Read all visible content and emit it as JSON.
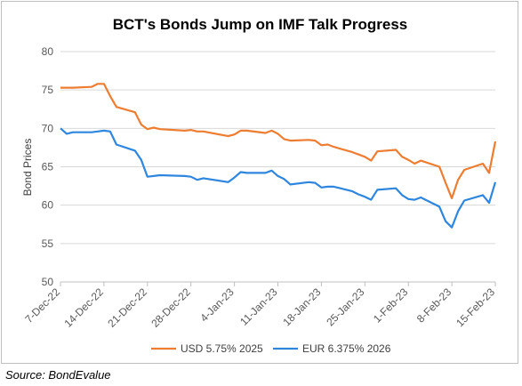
{
  "chart_data": {
    "type": "line",
    "title": "BCT's Bonds Jump on IMF Talk Progress",
    "ylabel": "Bond Prices",
    "ylim": [
      50,
      80
    ],
    "yticks": [
      50,
      55,
      60,
      65,
      70,
      75,
      80
    ],
    "xticks": [
      "7-Dec-22",
      "14-Dec-22",
      "21-Dec-22",
      "28-Dec-22",
      "4-Jan-23",
      "11-Jan-23",
      "18-Jan-23",
      "25-Jan-23",
      "1-Feb-23",
      "8-Feb-23",
      "15-Feb-23"
    ],
    "x_start": "2022-12-07",
    "legend_position": "bottom",
    "grid": "horizontal",
    "series": [
      {
        "name": "USD 5.75% 2025",
        "color": "#ED7D31",
        "points": [
          [
            "2022-12-07",
            75.3
          ],
          [
            "2022-12-08",
            75.3
          ],
          [
            "2022-12-09",
            75.3
          ],
          [
            "2022-12-12",
            75.4
          ],
          [
            "2022-12-13",
            75.8
          ],
          [
            "2022-12-14",
            75.8
          ],
          [
            "2022-12-15",
            74.2
          ],
          [
            "2022-12-16",
            72.8
          ],
          [
            "2022-12-19",
            72.1
          ],
          [
            "2022-12-20",
            70.5
          ],
          [
            "2022-12-21",
            69.9
          ],
          [
            "2022-12-22",
            70.1
          ],
          [
            "2022-12-23",
            69.9
          ],
          [
            "2022-12-27",
            69.7
          ],
          [
            "2022-12-28",
            69.8
          ],
          [
            "2022-12-29",
            69.6
          ],
          [
            "2022-12-30",
            69.6
          ],
          [
            "2023-01-03",
            69.0
          ],
          [
            "2023-01-04",
            69.2
          ],
          [
            "2023-01-05",
            69.7
          ],
          [
            "2023-01-06",
            69.7
          ],
          [
            "2023-01-09",
            69.4
          ],
          [
            "2023-01-10",
            69.7
          ],
          [
            "2023-01-11",
            69.3
          ],
          [
            "2023-01-12",
            68.6
          ],
          [
            "2023-01-13",
            68.4
          ],
          [
            "2023-01-16",
            68.5
          ],
          [
            "2023-01-17",
            68.4
          ],
          [
            "2023-01-18",
            67.8
          ],
          [
            "2023-01-19",
            67.9
          ],
          [
            "2023-01-20",
            67.6
          ],
          [
            "2023-01-23",
            66.9
          ],
          [
            "2023-01-24",
            66.6
          ],
          [
            "2023-01-25",
            66.3
          ],
          [
            "2023-01-26",
            65.8
          ],
          [
            "2023-01-27",
            67.0
          ],
          [
            "2023-01-30",
            67.2
          ],
          [
            "2023-01-31",
            66.3
          ],
          [
            "2023-02-01",
            65.9
          ],
          [
            "2023-02-02",
            65.4
          ],
          [
            "2023-02-03",
            65.8
          ],
          [
            "2023-02-06",
            65.0
          ],
          [
            "2023-02-07",
            62.9
          ],
          [
            "2023-02-08",
            60.9
          ],
          [
            "2023-02-09",
            63.3
          ],
          [
            "2023-02-10",
            64.6
          ],
          [
            "2023-02-13",
            65.4
          ],
          [
            "2023-02-14",
            64.2
          ],
          [
            "2023-02-15",
            68.3
          ]
        ]
      },
      {
        "name": "EUR 6.375% 2026",
        "color": "#2E86DE",
        "points": [
          [
            "2022-12-07",
            70.0
          ],
          [
            "2022-12-08",
            69.3
          ],
          [
            "2022-12-09",
            69.5
          ],
          [
            "2022-12-12",
            69.5
          ],
          [
            "2022-12-13",
            69.6
          ],
          [
            "2022-12-14",
            69.7
          ],
          [
            "2022-12-15",
            69.6
          ],
          [
            "2022-12-16",
            67.9
          ],
          [
            "2022-12-19",
            67.1
          ],
          [
            "2022-12-20",
            65.9
          ],
          [
            "2022-12-21",
            63.7
          ],
          [
            "2022-12-22",
            63.8
          ],
          [
            "2022-12-23",
            63.9
          ],
          [
            "2022-12-27",
            63.8
          ],
          [
            "2022-12-28",
            63.7
          ],
          [
            "2022-12-29",
            63.3
          ],
          [
            "2022-12-30",
            63.5
          ],
          [
            "2023-01-03",
            63.0
          ],
          [
            "2023-01-04",
            63.6
          ],
          [
            "2023-01-05",
            64.3
          ],
          [
            "2023-01-06",
            64.2
          ],
          [
            "2023-01-09",
            64.2
          ],
          [
            "2023-01-10",
            64.5
          ],
          [
            "2023-01-11",
            63.8
          ],
          [
            "2023-01-12",
            63.4
          ],
          [
            "2023-01-13",
            62.7
          ],
          [
            "2023-01-16",
            63.0
          ],
          [
            "2023-01-17",
            62.9
          ],
          [
            "2023-01-18",
            62.3
          ],
          [
            "2023-01-19",
            62.4
          ],
          [
            "2023-01-20",
            62.4
          ],
          [
            "2023-01-23",
            61.8
          ],
          [
            "2023-01-24",
            61.4
          ],
          [
            "2023-01-25",
            61.1
          ],
          [
            "2023-01-26",
            60.7
          ],
          [
            "2023-01-27",
            62.0
          ],
          [
            "2023-01-30",
            62.2
          ],
          [
            "2023-01-31",
            61.3
          ],
          [
            "2023-02-01",
            60.8
          ],
          [
            "2023-02-02",
            60.7
          ],
          [
            "2023-02-03",
            61.0
          ],
          [
            "2023-02-06",
            59.8
          ],
          [
            "2023-02-07",
            57.9
          ],
          [
            "2023-02-08",
            57.1
          ],
          [
            "2023-02-09",
            59.2
          ],
          [
            "2023-02-10",
            60.6
          ],
          [
            "2023-02-13",
            61.3
          ],
          [
            "2023-02-14",
            60.3
          ],
          [
            "2023-02-15",
            63.0
          ]
        ]
      }
    ]
  },
  "source_text": "Source: BondEvalue"
}
